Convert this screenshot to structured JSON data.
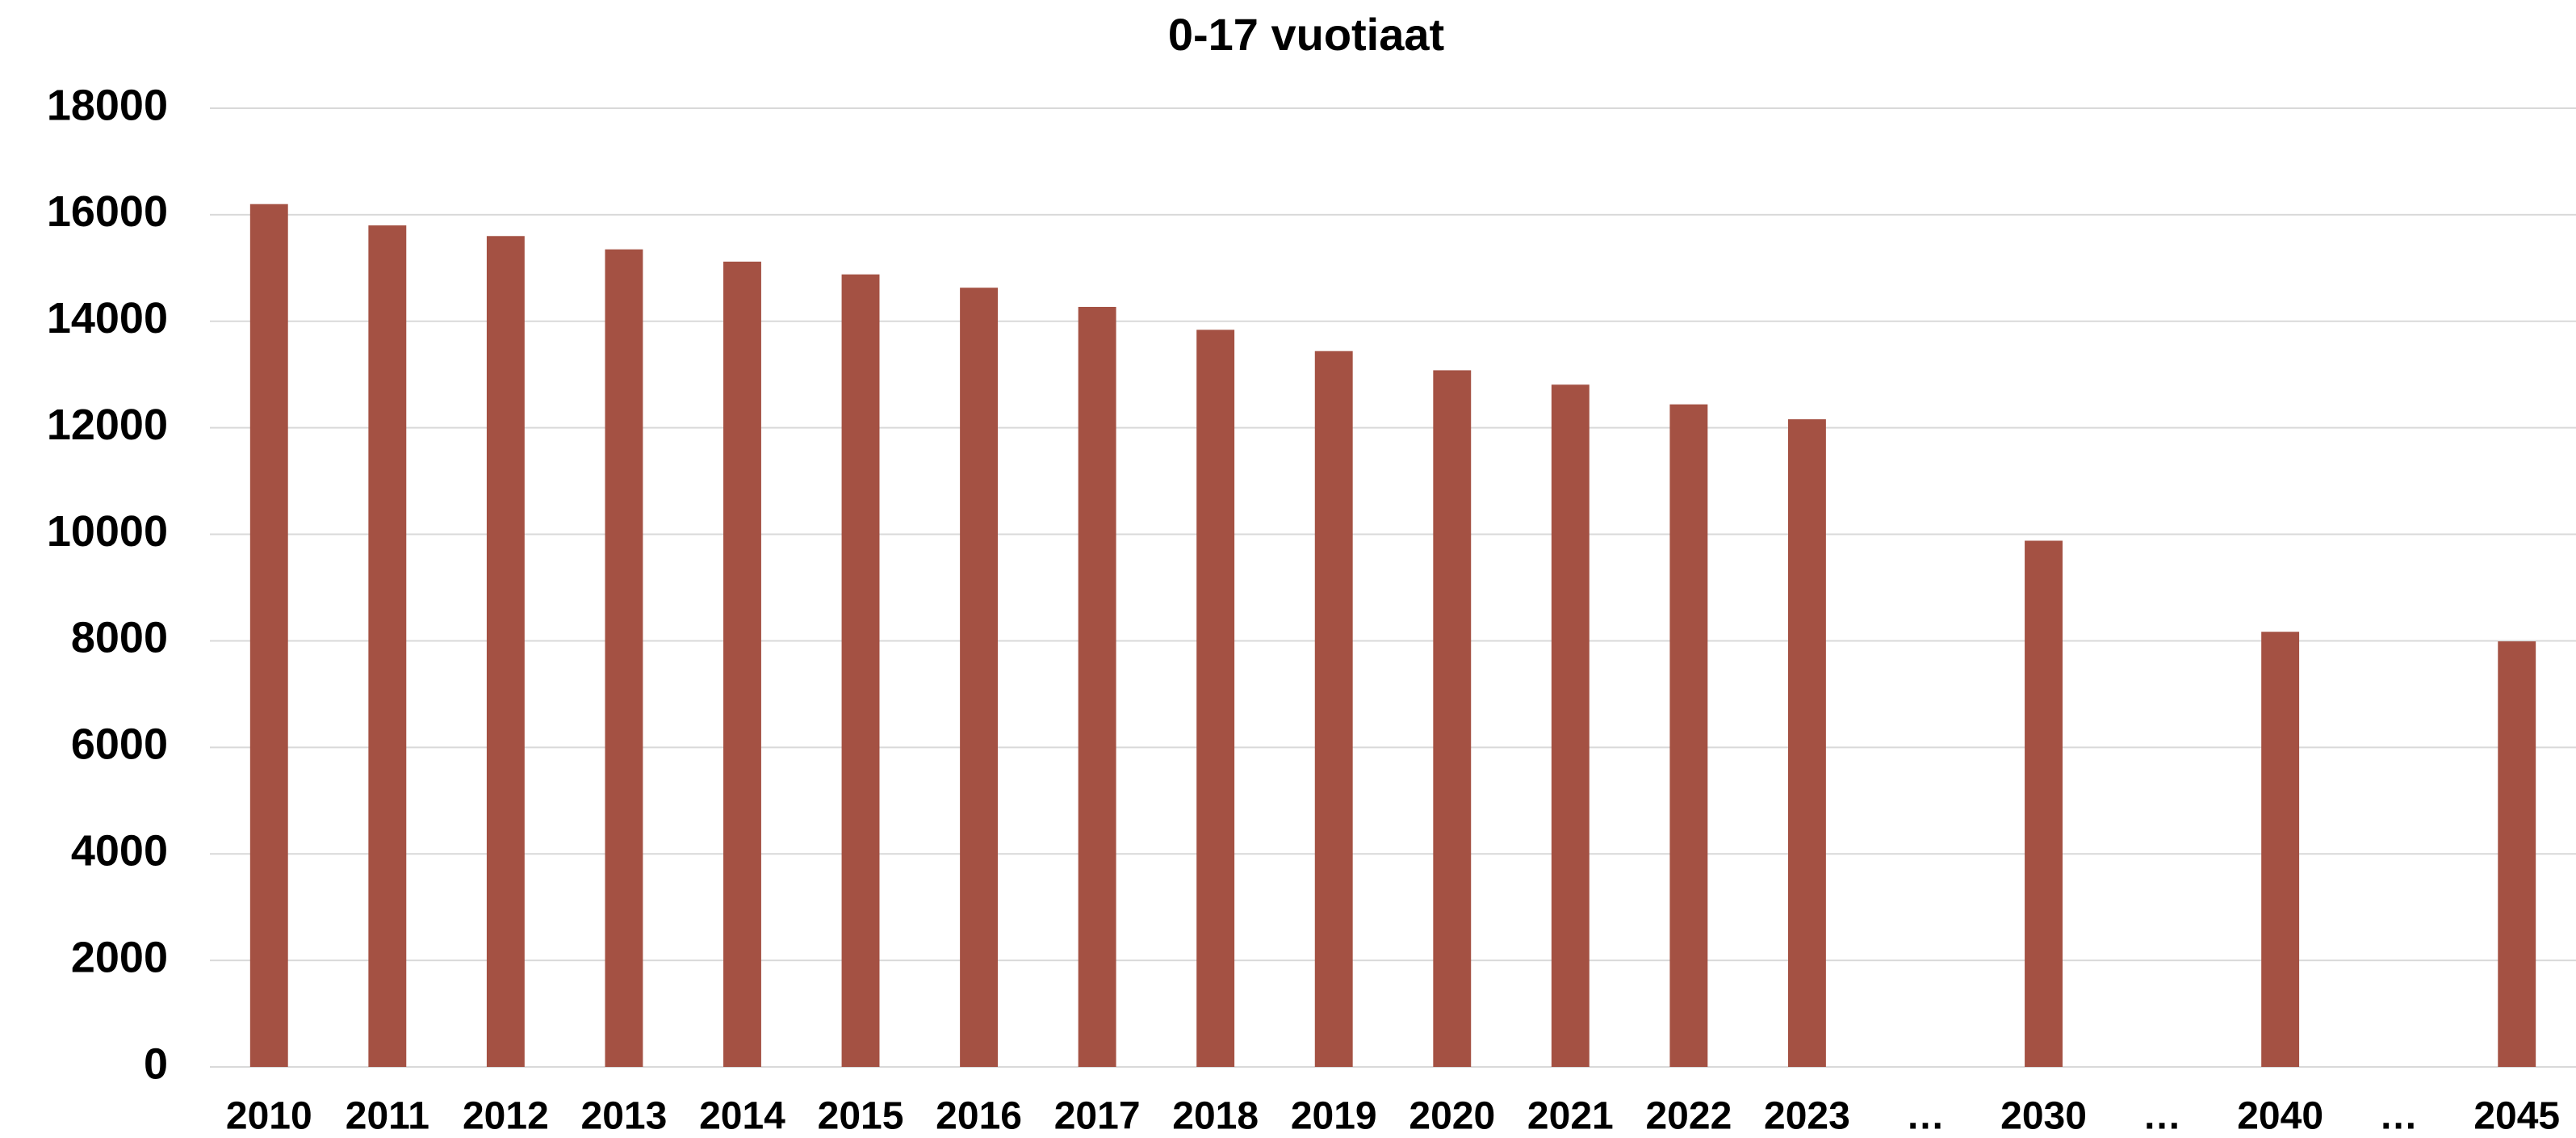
{
  "chart_data": {
    "type": "bar",
    "title": "0-17 vuotiaat",
    "categories": [
      "2010",
      "2011",
      "2012",
      "2013",
      "2014",
      "2015",
      "2016",
      "2017",
      "2018",
      "2019",
      "2020",
      "2021",
      "2022",
      "2023",
      "…",
      "2030",
      "…",
      "2040",
      "…",
      "2045"
    ],
    "values": [
      16200,
      15800,
      15600,
      15350,
      15120,
      14880,
      14630,
      14270,
      13840,
      13440,
      13080,
      12810,
      12440,
      12160,
      null,
      9880,
      null,
      8170,
      null,
      7990
    ],
    "color": "#a45143",
    "ylim": [
      0,
      18000
    ],
    "yticks": [
      0,
      2000,
      4000,
      6000,
      8000,
      10000,
      12000,
      14000,
      16000,
      18000
    ],
    "grid": true
  }
}
